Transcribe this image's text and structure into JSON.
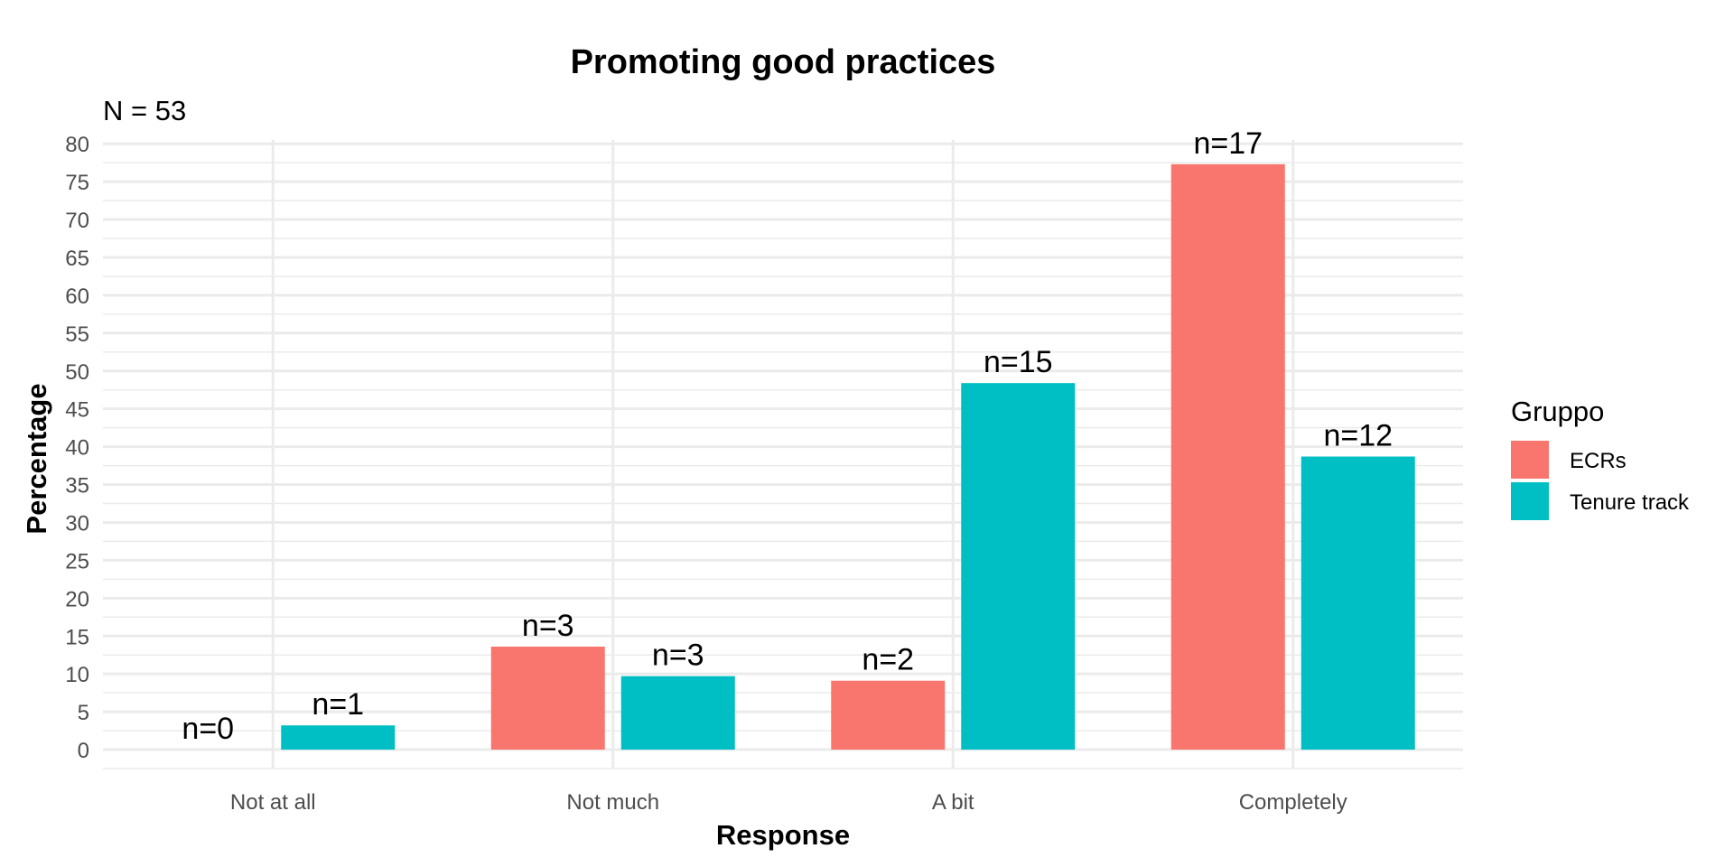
{
  "chart_data": {
    "type": "bar",
    "title": "Promoting good practices",
    "subtitle": "N = 53",
    "xlabel": "Response",
    "ylabel": "Percentage",
    "categories": [
      "Not at all",
      "Not much",
      "A bit",
      "Completely"
    ],
    "series": [
      {
        "name": "ECRs",
        "color": "#F8766D",
        "values": [
          0,
          13.6,
          9.1,
          77.3
        ],
        "labels": [
          "n=0",
          "n=3",
          "n=2",
          "n=17"
        ]
      },
      {
        "name": "Tenure track",
        "color": "#00BFC4",
        "values": [
          3.2,
          9.7,
          48.4,
          38.7
        ],
        "labels": [
          "n=1",
          "n=3",
          "n=15",
          "n=12"
        ]
      }
    ],
    "ylim": [
      -2.5,
      80.5
    ],
    "yticks": [
      0,
      5,
      10,
      15,
      20,
      25,
      30,
      35,
      40,
      45,
      50,
      55,
      60,
      65,
      70,
      75,
      80
    ],
    "ytick_labels": [
      "0",
      "5",
      "10",
      "15",
      "20",
      "25",
      "30",
      "35",
      "40",
      "45",
      "50",
      "55",
      "60",
      "65",
      "70",
      "75",
      "80"
    ],
    "grid": true,
    "legend": {
      "title": "Gruppo",
      "position": "right"
    }
  }
}
